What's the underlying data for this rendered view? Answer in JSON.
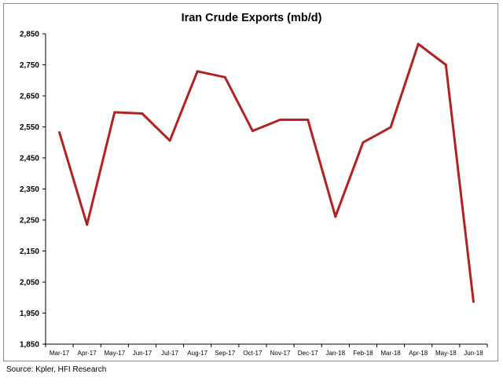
{
  "chart_data": {
    "type": "line",
    "title": "Iran Crude Exports (mb/d)",
    "xlabel": "",
    "ylabel": "",
    "categories": [
      "Mar-17",
      "Apr-17",
      "May-17",
      "Jun-17",
      "Jul-17",
      "Aug-17",
      "Sep-17",
      "Oct-17",
      "Nov-17",
      "Dec-17",
      "Jan-18",
      "Feb-18",
      "Mar-18",
      "Apr-18",
      "May-18",
      "Jun-18"
    ],
    "series": [
      {
        "values": [
          2532,
          2235,
          2597,
          2593,
          2506,
          2729,
          2710,
          2537,
          2573,
          2573,
          2261,
          2500,
          2549,
          2817,
          2750,
          1987
        ]
      }
    ],
    "yticks": [
      "2,850",
      "2,750",
      "2,650",
      "2,550",
      "2,450",
      "2,350",
      "2,250",
      "2,150",
      "2,050",
      "1,950",
      "1,850"
    ],
    "ylim": [
      1850,
      2850
    ],
    "grid": false,
    "line_color": "#b22222"
  },
  "source": "Source: Kpler, HFI Research"
}
